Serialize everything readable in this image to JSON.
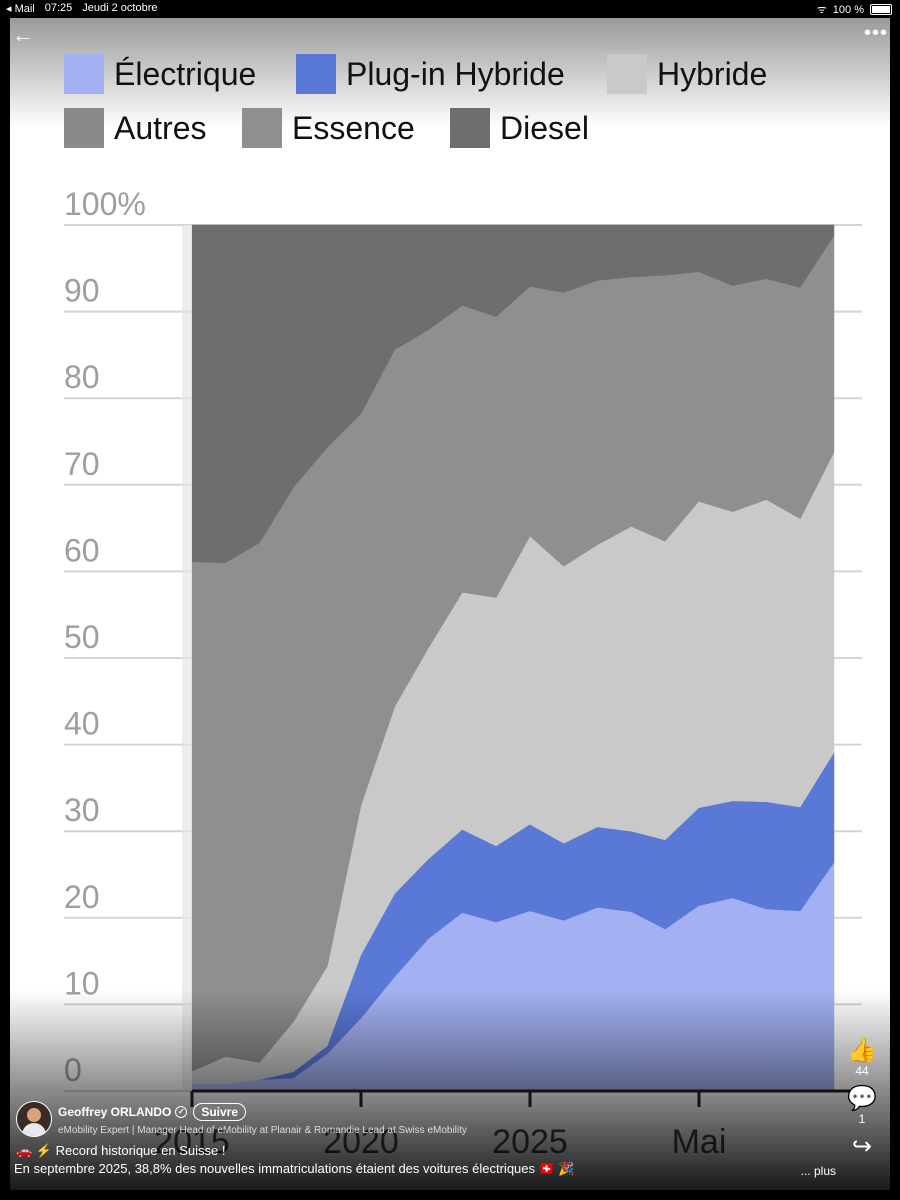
{
  "status_bar": {
    "app": "◂ Mail",
    "time": "07:25",
    "date": "Jeudi 2 octobre",
    "wifi": "ᯤ",
    "battery": "100 %"
  },
  "icons": {
    "back": "←",
    "more": "•••",
    "like": "👍",
    "comment": "💬",
    "share": "↪"
  },
  "post": {
    "author": "Geoffrey ORLANDO",
    "follow_label": "Suivre",
    "headline": "eMobility Expert | Manager Head of eMobility at Planair & Romandie Lead at Swiss eMobility",
    "title_emoji": "🚗 ⚡",
    "title": "Record historique en Suisse !",
    "text": "En septembre 2025, 38,8% des nouvelles immatriculations étaient des voitures électriques 🇨🇭 🎉",
    "more_label": "... plus",
    "likes": "44",
    "comments": "1"
  },
  "chart_data": {
    "type": "area",
    "stacked": true,
    "ylim": [
      0,
      100
    ],
    "yticks": [
      "0",
      "10",
      "20",
      "30",
      "40",
      "50",
      "60",
      "70",
      "80",
      "90",
      "100%"
    ],
    "xtick_labels": [
      "2015",
      "2020",
      "2025",
      "Mai"
    ],
    "x_labels_note": "",
    "grid": true,
    "legend_position": "top",
    "series": [
      {
        "name": "Électrique",
        "color": "#a3b1f2",
        "values": [
          0.8,
          0.8,
          1.3,
          1.5,
          4.3,
          8.4,
          13.2,
          17.6,
          20.6,
          19.5,
          20.8,
          19.7,
          21.2,
          20.7,
          18.7,
          21.4,
          22.3,
          21.0,
          20.8,
          26.4
        ]
      },
      {
        "name": "Plug-in Hybride",
        "color": "#5a78d6",
        "values": [
          0.0,
          0.0,
          0.0,
          0.7,
          0.9,
          7.3,
          9.6,
          9.2,
          9.6,
          8.8,
          10.0,
          8.9,
          9.3,
          9.3,
          10.3,
          11.3,
          11.2,
          12.4,
          12.0,
          12.7
        ]
      },
      {
        "name": "Hybride",
        "color": "#c9c9c9",
        "values": [
          1.5,
          3.2,
          2.0,
          5.8,
          9.2,
          17.3,
          21.6,
          24.4,
          27.4,
          28.7,
          33.3,
          32.0,
          32.6,
          35.2,
          34.5,
          35.4,
          33.4,
          34.9,
          33.3,
          34.7
        ]
      },
      {
        "name": "Autres",
        "color": "#8a8a8a",
        "values": [
          0,
          0,
          0,
          0,
          0,
          0,
          0,
          0,
          0,
          0,
          0,
          0,
          0,
          0,
          0,
          0,
          0,
          0,
          0,
          0
        ]
      },
      {
        "name": "Essence",
        "color": "#8f8f8f",
        "values": [
          58.8,
          57.0,
          60.0,
          61.7,
          59.9,
          45.2,
          41.2,
          36.7,
          33.1,
          32.4,
          28.8,
          31.6,
          30.5,
          28.8,
          30.7,
          26.5,
          26.1,
          25.5,
          26.7,
          25.0
        ]
      },
      {
        "name": "Diesel",
        "color": "#6e6e6e",
        "values": [
          38.9,
          39.0,
          36.7,
          30.3,
          25.7,
          21.8,
          14.4,
          12.1,
          9.3,
          10.6,
          7.1,
          7.8,
          6.4,
          6.0,
          5.8,
          5.4,
          7.0,
          6.2,
          7.2,
          1.2
        ]
      }
    ]
  }
}
